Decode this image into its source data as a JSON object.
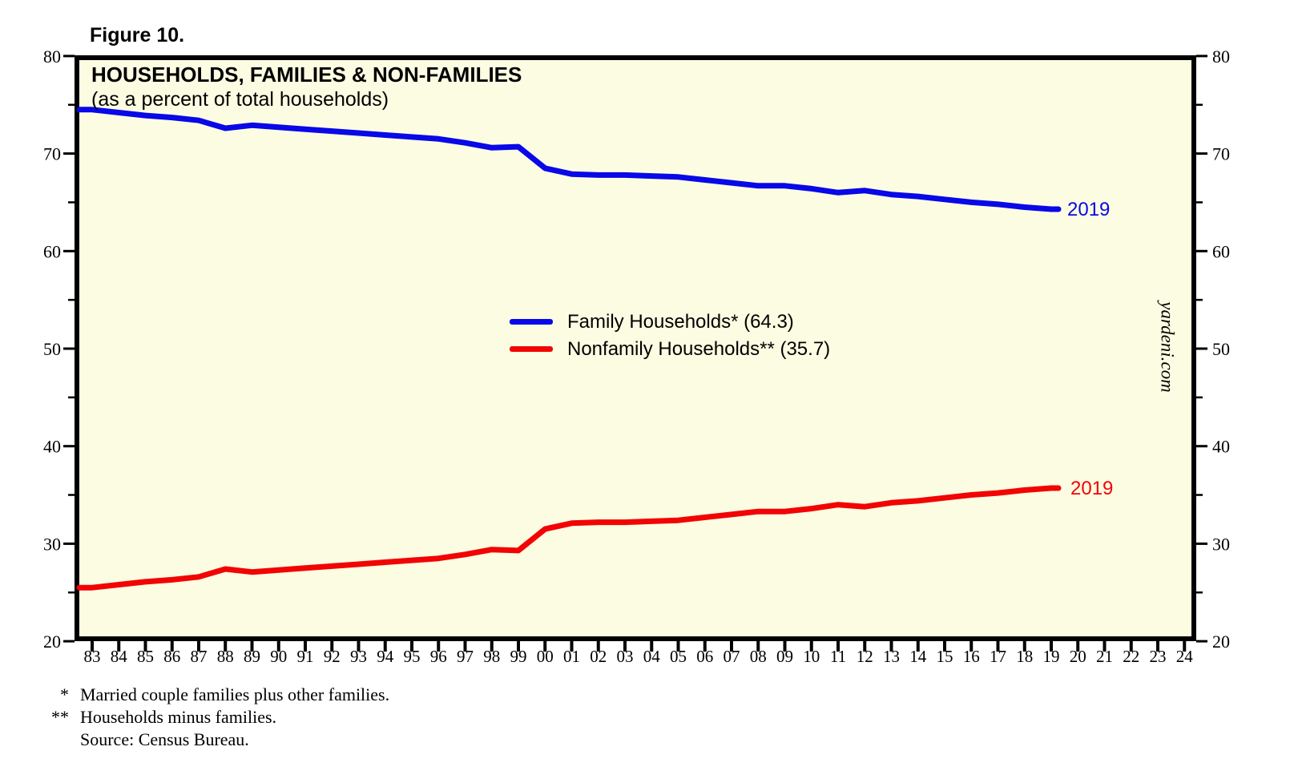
{
  "figure_label": "Figure 10.",
  "title": "HOUSEHOLDS, FAMILIES & NON-FAMILIES",
  "subtitle": "(as a percent of total households)",
  "watermark": "yardeni.com",
  "colors": {
    "family_line": "#0808E8",
    "nonfamily_line": "#F20404",
    "plot_background": "#FCFCE2",
    "frame": "#000000",
    "text": "#000000"
  },
  "legend": {
    "items": [
      {
        "series": "family",
        "label": "Family Households* (64.3)"
      },
      {
        "series": "nonfamily",
        "label": "Nonfamily Households** (35.7)"
      }
    ]
  },
  "end_labels": {
    "family": "2019",
    "nonfamily": "2019"
  },
  "footnotes": {
    "rows": [
      {
        "marker": "*",
        "text": "Married couple families plus other families."
      },
      {
        "marker": "**",
        "text": "Households minus families."
      },
      {
        "marker": "",
        "text": "Source: Census Bureau."
      }
    ]
  },
  "chart_data": {
    "type": "line",
    "title": "HOUSEHOLDS, FAMILIES & NON-FAMILIES",
    "subtitle": "(as a percent of total households)",
    "grid": "off",
    "legend_position": "center",
    "ylim": [
      20,
      80
    ],
    "y_major_ticks": [
      20,
      30,
      40,
      50,
      60,
      70,
      80
    ],
    "y_minor_ticks": [
      25,
      35,
      45,
      55,
      65,
      75
    ],
    "x_tick_labels": [
      "83",
      "84",
      "85",
      "86",
      "87",
      "88",
      "89",
      "90",
      "91",
      "92",
      "93",
      "94",
      "95",
      "96",
      "97",
      "98",
      "99",
      "00",
      "01",
      "02",
      "03",
      "04",
      "05",
      "06",
      "07",
      "08",
      "09",
      "10",
      "11",
      "12",
      "13",
      "14",
      "15",
      "16",
      "17",
      "18",
      "19",
      "20",
      "21",
      "22",
      "23",
      "24"
    ],
    "x_start_year": 1983,
    "x_end_year": 2024,
    "years": [
      1983,
      1984,
      1985,
      1986,
      1987,
      1988,
      1989,
      1990,
      1991,
      1992,
      1993,
      1994,
      1995,
      1996,
      1997,
      1998,
      1999,
      2000,
      2001,
      2002,
      2003,
      2004,
      2005,
      2006,
      2007,
      2008,
      2009,
      2010,
      2011,
      2012,
      2013,
      2014,
      2015,
      2016,
      2017,
      2018,
      2019
    ],
    "series": [
      {
        "name": "Family Households*",
        "color_key": "family_line",
        "end_label": "2019",
        "final_value": 64.3,
        "values": [
          74.5,
          74.2,
          73.9,
          73.7,
          73.4,
          72.6,
          72.9,
          72.7,
          72.5,
          72.3,
          72.1,
          71.9,
          71.7,
          71.5,
          71.1,
          70.6,
          70.7,
          68.5,
          67.9,
          67.8,
          67.8,
          67.7,
          67.6,
          67.3,
          67.0,
          66.7,
          66.7,
          66.4,
          66.0,
          66.2,
          65.8,
          65.6,
          65.3,
          65.0,
          64.8,
          64.5,
          64.3
        ]
      },
      {
        "name": "Nonfamily Households**",
        "color_key": "nonfamily_line",
        "end_label": "2019",
        "final_value": 35.7,
        "values": [
          25.5,
          25.8,
          26.1,
          26.3,
          26.6,
          27.4,
          27.1,
          27.3,
          27.5,
          27.7,
          27.9,
          28.1,
          28.3,
          28.5,
          28.9,
          29.4,
          29.3,
          31.5,
          32.1,
          32.2,
          32.2,
          32.3,
          32.4,
          32.7,
          33.0,
          33.3,
          33.3,
          33.6,
          34.0,
          33.8,
          34.2,
          34.4,
          34.7,
          35.0,
          35.2,
          35.5,
          35.7
        ]
      }
    ],
    "source": "Census Bureau"
  }
}
